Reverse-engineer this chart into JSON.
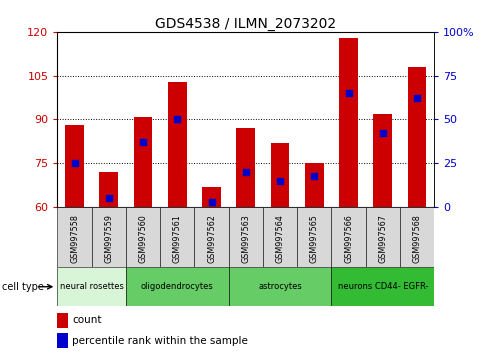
{
  "title": "GDS4538 / ILMN_2073202",
  "samples": [
    "GSM997558",
    "GSM997559",
    "GSM997560",
    "GSM997561",
    "GSM997562",
    "GSM997563",
    "GSM997564",
    "GSM997565",
    "GSM997566",
    "GSM997567",
    "GSM997568"
  ],
  "count_values": [
    88,
    72,
    91,
    103,
    67,
    87,
    82,
    75,
    118,
    92,
    108
  ],
  "percentile_values": [
    25,
    5,
    37,
    50,
    3,
    20,
    15,
    18,
    65,
    42,
    62
  ],
  "y_min": 60,
  "y_max": 120,
  "y_ticks_left": [
    60,
    75,
    90,
    105,
    120
  ],
  "y_ticks_right": [
    0,
    25,
    50,
    75,
    100
  ],
  "bar_color": "#cc0000",
  "percentile_color": "#0000cc",
  "cell_types": [
    {
      "label": "neural rosettes",
      "start": 0,
      "end": 1,
      "color": "#d8f5d8"
    },
    {
      "label": "oligodendrocytes",
      "start": 2,
      "end": 4,
      "color": "#66cc66"
    },
    {
      "label": "astrocytes",
      "start": 5,
      "end": 7,
      "color": "#66cc66"
    },
    {
      "label": "neurons CD44- EGFR-",
      "start": 8,
      "end": 10,
      "color": "#33bb33"
    }
  ],
  "cell_type_label": "cell type",
  "legend_count": "count",
  "legend_percentile": "percentile rank within the sample",
  "tick_label_color_left": "#cc0000",
  "tick_label_color_right": "#0000cc",
  "bg_color": "#ffffff",
  "grid_yticks": [
    75,
    90,
    105
  ]
}
